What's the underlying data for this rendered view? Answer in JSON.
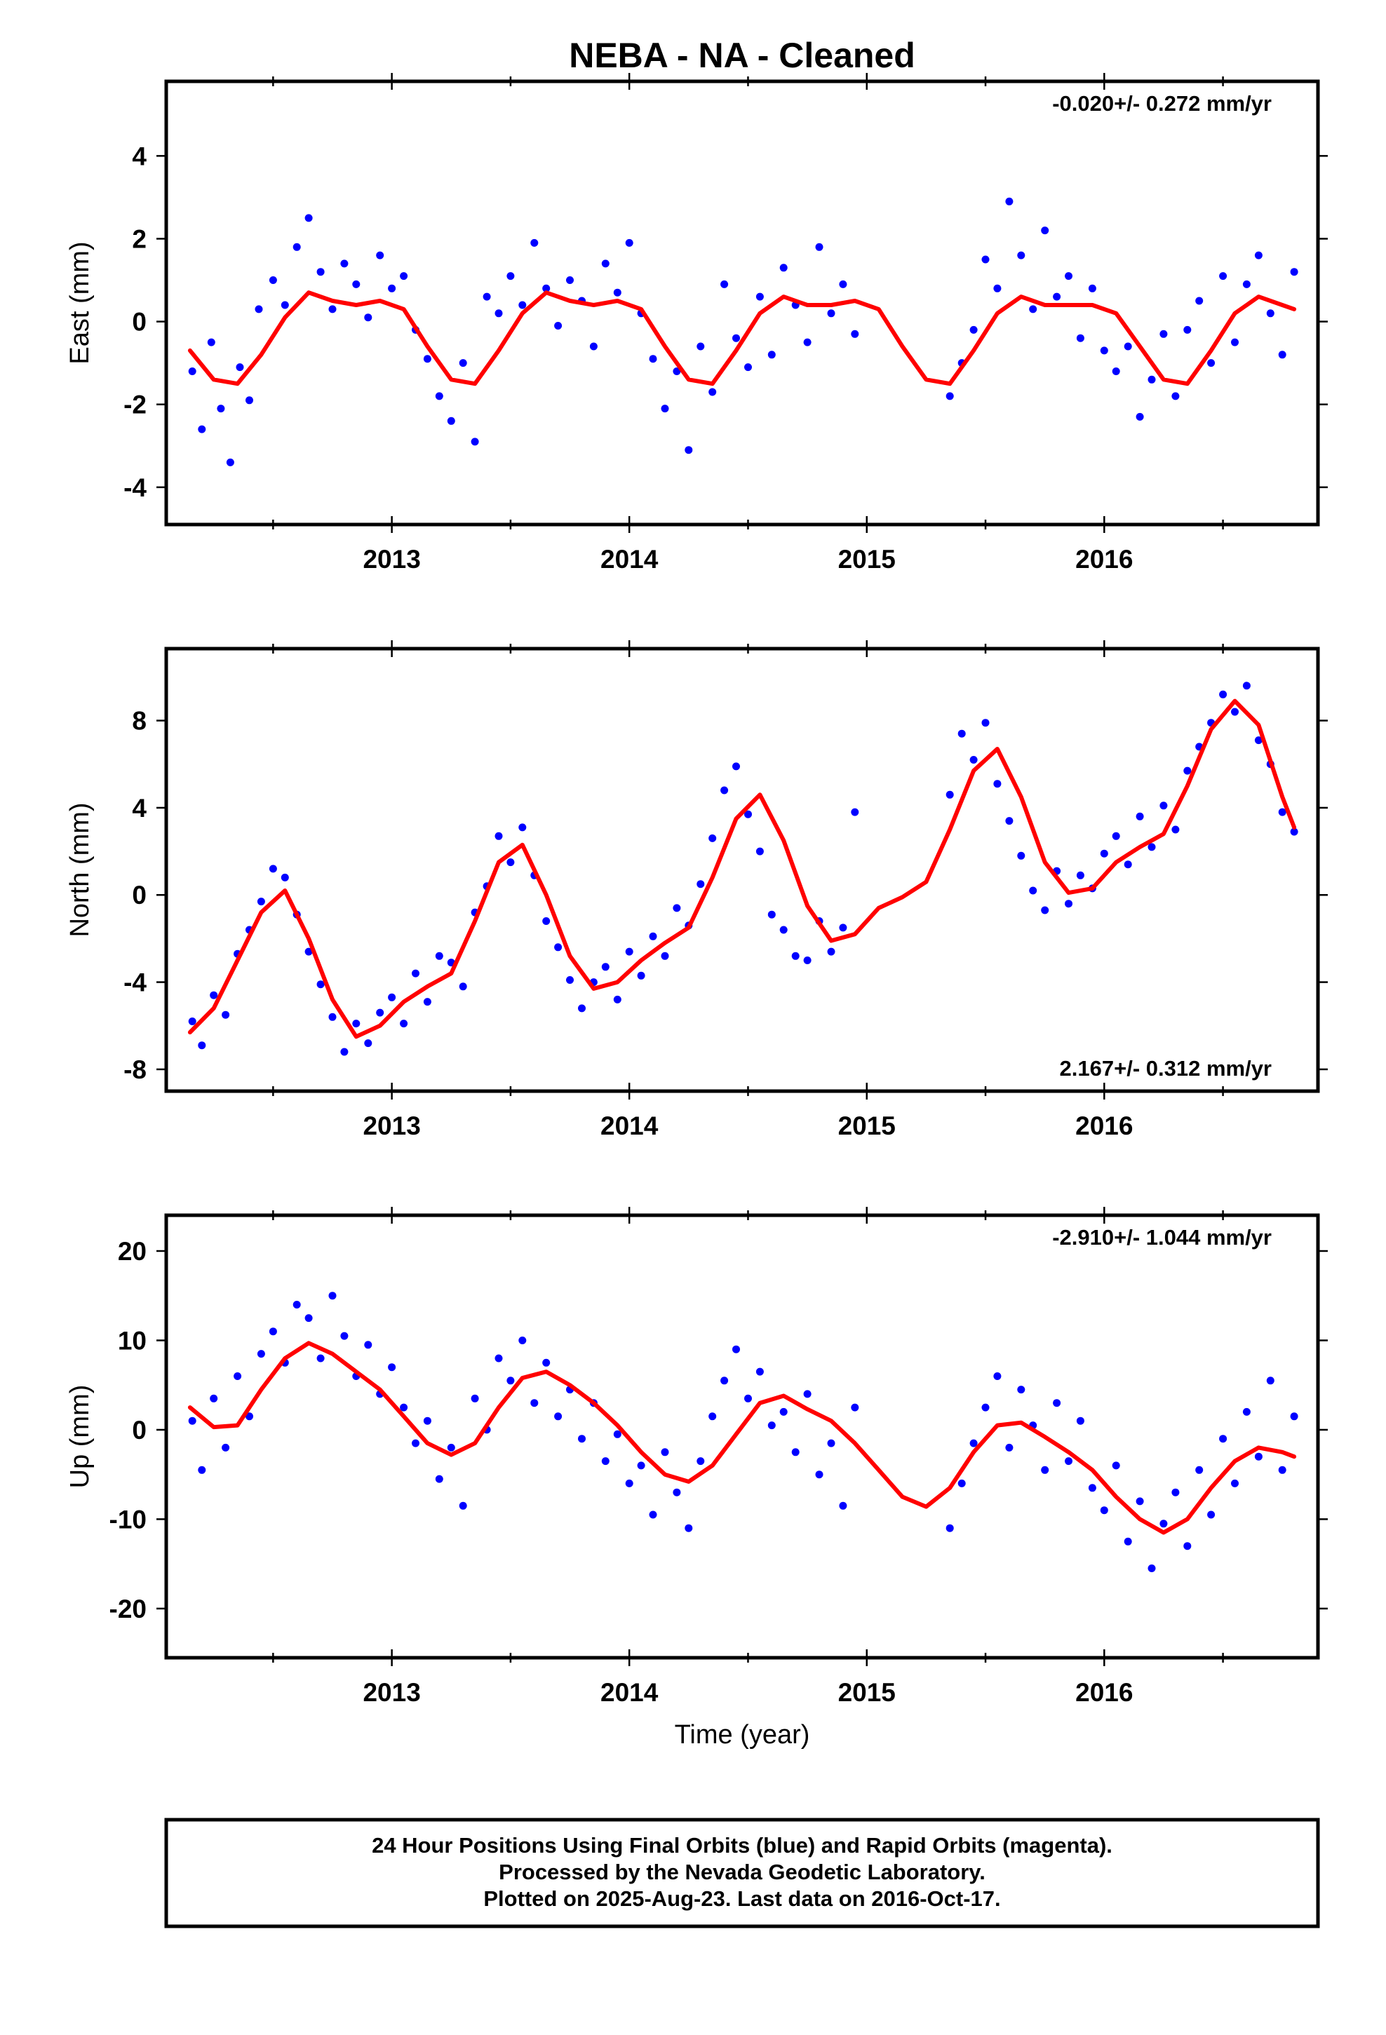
{
  "title": "NEBA  - NA - Cleaned",
  "colors": {
    "points": "#0000ff",
    "fit": "#ff0000",
    "frame": "#000000"
  },
  "footer": {
    "line1": "24 Hour Positions Using Final Orbits (blue) and Rapid Orbits (magenta).",
    "line2": "Processed by the Nevada Geodetic Laboratory.",
    "line3": "Plotted on 2025-Aug-23. Last data on 2016-Oct-17."
  },
  "chart_data": [
    {
      "type": "scatter",
      "name": "east",
      "ylabel": "East (mm)",
      "xlabel": "",
      "rate_text": "-0.020+/- 0.272 mm/yr",
      "rate_position": "top-right",
      "xlim": [
        2012.05,
        2016.9
      ],
      "ylim": [
        -4.9,
        5.8
      ],
      "x_ticks": [
        2013,
        2014,
        2015,
        2016
      ],
      "y_ticks": [
        -4,
        -2,
        0,
        2,
        4
      ],
      "grid": false,
      "fit_curve": {
        "x": [
          2012.15,
          2012.25,
          2012.35,
          2012.45,
          2012.55,
          2012.65,
          2012.75,
          2012.85,
          2012.95,
          2013.05,
          2013.15,
          2013.25,
          2013.35,
          2013.45,
          2013.55,
          2013.65,
          2013.75,
          2013.85,
          2013.95,
          2014.05,
          2014.15,
          2014.25,
          2014.35,
          2014.45,
          2014.55,
          2014.65,
          2014.75,
          2014.85,
          2014.95,
          2015.05,
          2015.15,
          2015.25,
          2015.35,
          2015.45,
          2015.55,
          2015.65,
          2015.75,
          2015.85,
          2015.95,
          2016.05,
          2016.15,
          2016.25,
          2016.35,
          2016.45,
          2016.55,
          2016.65,
          2016.75,
          2016.8
        ],
        "y": [
          -0.7,
          -1.4,
          -1.5,
          -0.8,
          0.1,
          0.7,
          0.5,
          0.4,
          0.5,
          0.3,
          -0.6,
          -1.4,
          -1.5,
          -0.7,
          0.2,
          0.7,
          0.5,
          0.4,
          0.5,
          0.3,
          -0.6,
          -1.4,
          -1.5,
          -0.7,
          0.2,
          0.6,
          0.4,
          0.4,
          0.5,
          0.3,
          -0.6,
          -1.4,
          -1.5,
          -0.7,
          0.2,
          0.6,
          0.4,
          0.4,
          0.4,
          0.2,
          -0.6,
          -1.4,
          -1.5,
          -0.7,
          0.2,
          0.6,
          0.4,
          0.3
        ]
      },
      "points": {
        "x": [
          2012.16,
          2012.2,
          2012.24,
          2012.28,
          2012.32,
          2012.36,
          2012.4,
          2012.44,
          2012.5,
          2012.55,
          2012.6,
          2012.65,
          2012.7,
          2012.75,
          2012.8,
          2012.85,
          2012.9,
          2012.95,
          2013.0,
          2013.05,
          2013.1,
          2013.15,
          2013.2,
          2013.25,
          2013.3,
          2013.35,
          2013.4,
          2013.45,
          2013.5,
          2013.55,
          2013.6,
          2013.65,
          2013.7,
          2013.75,
          2013.8,
          2013.85,
          2013.9,
          2013.95,
          2014.0,
          2014.05,
          2014.1,
          2014.15,
          2014.2,
          2014.25,
          2014.3,
          2014.35,
          2014.4,
          2014.45,
          2014.5,
          2014.55,
          2014.6,
          2014.65,
          2014.7,
          2014.75,
          2014.8,
          2014.85,
          2014.9,
          2014.95,
          2015.35,
          2015.4,
          2015.45,
          2015.5,
          2015.55,
          2015.6,
          2015.65,
          2015.7,
          2015.75,
          2015.8,
          2015.85,
          2015.9,
          2015.95,
          2016.0,
          2016.05,
          2016.1,
          2016.15,
          2016.2,
          2016.25,
          2016.3,
          2016.35,
          2016.4,
          2016.45,
          2016.5,
          2016.55,
          2016.6,
          2016.65,
          2016.7,
          2016.75,
          2016.8
        ],
        "y": [
          -1.2,
          -2.6,
          -0.5,
          -2.1,
          -3.4,
          -1.1,
          -1.9,
          0.3,
          1.0,
          0.4,
          1.8,
          2.5,
          1.2,
          0.3,
          1.4,
          0.9,
          0.1,
          1.6,
          0.8,
          1.1,
          -0.2,
          -0.9,
          -1.8,
          -2.4,
          -1.0,
          -2.9,
          0.6,
          0.2,
          1.1,
          0.4,
          1.9,
          0.8,
          -0.1,
          1.0,
          0.5,
          -0.6,
          1.4,
          0.7,
          1.9,
          0.2,
          -0.9,
          -2.1,
          -1.2,
          -3.1,
          -0.6,
          -1.7,
          0.9,
          -0.4,
          -1.1,
          0.6,
          -0.8,
          1.3,
          0.4,
          -0.5,
          1.8,
          0.2,
          0.9,
          -0.3,
          -1.8,
          -1.0,
          -0.2,
          1.5,
          0.8,
          2.9,
          1.6,
          0.3,
          2.2,
          0.6,
          1.1,
          -0.4,
          0.8,
          -0.7,
          -1.2,
          -0.6,
          -2.3,
          -1.4,
          -0.3,
          -1.8,
          -0.2,
          0.5,
          -1.0,
          1.1,
          -0.5,
          0.9,
          1.6,
          0.2,
          -0.8,
          1.2
        ]
      }
    },
    {
      "type": "scatter",
      "name": "north",
      "ylabel": "North (mm)",
      "xlabel": "",
      "rate_text": "2.167+/- 0.312 mm/yr",
      "rate_position": "bottom-right",
      "xlim": [
        2012.05,
        2016.9
      ],
      "ylim": [
        -9.0,
        11.3
      ],
      "x_ticks": [
        2013,
        2014,
        2015,
        2016
      ],
      "y_ticks": [
        -8,
        -4,
        0,
        4,
        8
      ],
      "grid": false,
      "fit_curve": {
        "x": [
          2012.15,
          2012.25,
          2012.35,
          2012.45,
          2012.55,
          2012.65,
          2012.75,
          2012.85,
          2012.95,
          2013.05,
          2013.15,
          2013.25,
          2013.35,
          2013.45,
          2013.55,
          2013.65,
          2013.75,
          2013.85,
          2013.95,
          2014.05,
          2014.15,
          2014.25,
          2014.35,
          2014.45,
          2014.55,
          2014.65,
          2014.75,
          2014.85,
          2014.95,
          2015.05,
          2015.15,
          2015.25,
          2015.35,
          2015.45,
          2015.55,
          2015.65,
          2015.75,
          2015.85,
          2015.95,
          2016.05,
          2016.15,
          2016.25,
          2016.35,
          2016.45,
          2016.55,
          2016.65,
          2016.75,
          2016.8
        ],
        "y": [
          -6.3,
          -5.2,
          -3.0,
          -0.8,
          0.2,
          -2.0,
          -4.8,
          -6.5,
          -6.0,
          -4.9,
          -4.2,
          -3.6,
          -1.2,
          1.5,
          2.3,
          0.0,
          -2.8,
          -4.3,
          -4.0,
          -3.0,
          -2.2,
          -1.5,
          0.8,
          3.5,
          4.6,
          2.5,
          -0.5,
          -2.1,
          -1.8,
          -0.6,
          -0.1,
          0.6,
          3.0,
          5.7,
          6.7,
          4.5,
          1.5,
          0.1,
          0.3,
          1.5,
          2.2,
          2.8,
          5.0,
          7.6,
          8.9,
          7.8,
          4.5,
          3.1
        ]
      },
      "points": {
        "x": [
          2012.16,
          2012.2,
          2012.25,
          2012.3,
          2012.35,
          2012.4,
          2012.45,
          2012.5,
          2012.55,
          2012.6,
          2012.65,
          2012.7,
          2012.75,
          2012.8,
          2012.85,
          2012.9,
          2012.95,
          2013.0,
          2013.05,
          2013.1,
          2013.15,
          2013.2,
          2013.25,
          2013.3,
          2013.35,
          2013.4,
          2013.45,
          2013.5,
          2013.55,
          2013.6,
          2013.65,
          2013.7,
          2013.75,
          2013.8,
          2013.85,
          2013.9,
          2013.95,
          2014.0,
          2014.05,
          2014.1,
          2014.15,
          2014.2,
          2014.25,
          2014.3,
          2014.35,
          2014.4,
          2014.45,
          2014.5,
          2014.55,
          2014.6,
          2014.65,
          2014.7,
          2014.75,
          2014.8,
          2014.85,
          2014.9,
          2014.95,
          2015.35,
          2015.4,
          2015.45,
          2015.5,
          2015.55,
          2015.6,
          2015.65,
          2015.7,
          2015.75,
          2015.8,
          2015.85,
          2015.9,
          2015.95,
          2016.0,
          2016.05,
          2016.1,
          2016.15,
          2016.2,
          2016.25,
          2016.3,
          2016.35,
          2016.4,
          2016.45,
          2016.5,
          2016.55,
          2016.6,
          2016.65,
          2016.7,
          2016.75,
          2016.8
        ],
        "y": [
          -5.8,
          -6.9,
          -4.6,
          -5.5,
          -2.7,
          -1.6,
          -0.3,
          1.2,
          0.8,
          -0.9,
          -2.6,
          -4.1,
          -5.6,
          -7.2,
          -5.9,
          -6.8,
          -5.4,
          -4.7,
          -5.9,
          -3.6,
          -4.9,
          -2.8,
          -3.1,
          -4.2,
          -0.8,
          0.4,
          2.7,
          1.5,
          3.1,
          0.9,
          -1.2,
          -2.4,
          -3.9,
          -5.2,
          -4.0,
          -3.3,
          -4.8,
          -2.6,
          -3.7,
          -1.9,
          -2.8,
          -0.6,
          -1.4,
          0.5,
          2.6,
          4.8,
          5.9,
          3.7,
          2.0,
          -0.9,
          -1.6,
          -2.8,
          -3.0,
          -1.2,
          -2.6,
          -1.5,
          3.8,
          4.6,
          7.4,
          6.2,
          7.9,
          5.1,
          3.4,
          1.8,
          0.2,
          -0.7,
          1.1,
          -0.4,
          0.9,
          0.3,
          1.9,
          2.7,
          1.4,
          3.6,
          2.2,
          4.1,
          3.0,
          5.7,
          6.8,
          7.9,
          9.2,
          8.4,
          9.6,
          7.1,
          6.0,
          3.8,
          2.9
        ]
      }
    },
    {
      "type": "scatter",
      "name": "up",
      "ylabel": "Up (mm)",
      "xlabel": "Time (year)",
      "rate_text": "-2.910+/- 1.044 mm/yr",
      "rate_position": "top-right",
      "xlim": [
        2012.05,
        2016.9
      ],
      "ylim": [
        -25.5,
        24.0
      ],
      "x_ticks": [
        2013,
        2014,
        2015,
        2016
      ],
      "y_ticks": [
        -20,
        -10,
        0,
        10,
        20
      ],
      "grid": false,
      "fit_curve": {
        "x": [
          2012.15,
          2012.25,
          2012.35,
          2012.45,
          2012.55,
          2012.65,
          2012.75,
          2012.85,
          2012.95,
          2013.05,
          2013.15,
          2013.25,
          2013.35,
          2013.45,
          2013.55,
          2013.65,
          2013.75,
          2013.85,
          2013.95,
          2014.05,
          2014.15,
          2014.25,
          2014.35,
          2014.45,
          2014.55,
          2014.65,
          2014.75,
          2014.85,
          2014.95,
          2015.05,
          2015.15,
          2015.25,
          2015.35,
          2015.45,
          2015.55,
          2015.65,
          2015.75,
          2015.85,
          2015.95,
          2016.05,
          2016.15,
          2016.25,
          2016.35,
          2016.45,
          2016.55,
          2016.65,
          2016.75,
          2016.8
        ],
        "y": [
          2.5,
          0.3,
          0.5,
          4.5,
          8.0,
          9.7,
          8.5,
          6.5,
          4.5,
          1.5,
          -1.5,
          -2.8,
          -1.5,
          2.5,
          5.8,
          6.5,
          5.0,
          3.0,
          0.5,
          -2.5,
          -5.0,
          -5.8,
          -4.0,
          -0.5,
          3.0,
          3.8,
          2.3,
          1.0,
          -1.5,
          -4.5,
          -7.5,
          -8.6,
          -6.5,
          -2.5,
          0.5,
          0.8,
          -0.8,
          -2.5,
          -4.5,
          -7.5,
          -10.0,
          -11.5,
          -10.0,
          -6.5,
          -3.5,
          -2.0,
          -2.5,
          -3.0
        ]
      },
      "points": {
        "x": [
          2012.16,
          2012.2,
          2012.25,
          2012.3,
          2012.35,
          2012.4,
          2012.45,
          2012.5,
          2012.55,
          2012.6,
          2012.65,
          2012.7,
          2012.75,
          2012.8,
          2012.85,
          2012.9,
          2012.95,
          2013.0,
          2013.05,
          2013.1,
          2013.15,
          2013.2,
          2013.25,
          2013.3,
          2013.35,
          2013.4,
          2013.45,
          2013.5,
          2013.55,
          2013.6,
          2013.65,
          2013.7,
          2013.75,
          2013.8,
          2013.85,
          2013.9,
          2013.95,
          2014.0,
          2014.05,
          2014.1,
          2014.15,
          2014.2,
          2014.25,
          2014.3,
          2014.35,
          2014.4,
          2014.45,
          2014.5,
          2014.55,
          2014.6,
          2014.65,
          2014.7,
          2014.75,
          2014.8,
          2014.85,
          2014.9,
          2014.95,
          2015.35,
          2015.4,
          2015.45,
          2015.5,
          2015.55,
          2015.6,
          2015.65,
          2015.7,
          2015.75,
          2015.8,
          2015.85,
          2015.9,
          2015.95,
          2016.0,
          2016.05,
          2016.1,
          2016.15,
          2016.2,
          2016.25,
          2016.3,
          2016.35,
          2016.4,
          2016.45,
          2016.5,
          2016.55,
          2016.6,
          2016.65,
          2016.7,
          2016.75,
          2016.8
        ],
        "y": [
          1.0,
          -4.5,
          3.5,
          -2.0,
          6.0,
          1.5,
          8.5,
          11.0,
          7.5,
          14.0,
          12.5,
          8.0,
          15.0,
          10.5,
          6.0,
          9.5,
          4.0,
          7.0,
          2.5,
          -1.5,
          1.0,
          -5.5,
          -2.0,
          -8.5,
          3.5,
          0.0,
          8.0,
          5.5,
          10.0,
          3.0,
          7.5,
          1.5,
          4.5,
          -1.0,
          3.0,
          -3.5,
          -0.5,
          -6.0,
          -4.0,
          -9.5,
          -2.5,
          -7.0,
          -11.0,
          -3.5,
          1.5,
          5.5,
          9.0,
          3.5,
          6.5,
          0.5,
          2.0,
          -2.5,
          4.0,
          -5.0,
          -1.5,
          -8.5,
          2.5,
          -11.0,
          -6.0,
          -1.5,
          2.5,
          6.0,
          -2.0,
          4.5,
          0.5,
          -4.5,
          3.0,
          -3.5,
          1.0,
          -6.5,
          -9.0,
          -4.0,
          -12.5,
          -8.0,
          -15.5,
          -10.5,
          -7.0,
          -13.0,
          -4.5,
          -9.5,
          -1.0,
          -6.0,
          2.0,
          -3.0,
          5.5,
          -4.5,
          1.5
        ]
      }
    }
  ]
}
